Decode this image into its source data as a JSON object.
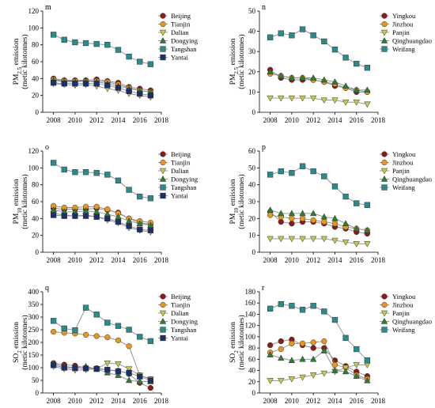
{
  "chart_data": [
    {
      "type": "line",
      "panel_label": "m",
      "ylabel": "PM₂.₅ emission",
      "ylabel_main": "PM",
      "ylabel_sub": "2.5",
      "ylabel_rest": " emission",
      "ylabel_units": "(metic kilotonnes)",
      "xlim": [
        2007,
        2018
      ],
      "xticks": [
        "2008",
        "2010",
        "2012",
        "2014",
        "2016",
        "2018"
      ],
      "ylim": [
        0,
        120
      ],
      "yticks": [
        "0",
        "20",
        "40",
        "60",
        "80",
        "100",
        "120"
      ],
      "legend_position": "top-right",
      "x": [
        2008,
        2009,
        2010,
        2011,
        2012,
        2013,
        2014,
        2015,
        2016,
        2017
      ],
      "series": [
        {
          "name": "Beijing",
          "color": "#8b1a1a",
          "marker": "circle",
          "values": [
            40,
            38,
            38,
            38,
            39,
            37,
            35,
            30,
            28,
            26
          ]
        },
        {
          "name": "Tianjin",
          "color": "#e8961e",
          "marker": "circle",
          "values": [
            39,
            37,
            37,
            37,
            37,
            36,
            33,
            29,
            26,
            24
          ]
        },
        {
          "name": "Dalian",
          "color": "#c8c84a",
          "marker": "triangle-down",
          "values": [
            34,
            33,
            32,
            33,
            31,
            28,
            26,
            22,
            20,
            18
          ]
        },
        {
          "name": "Dongying",
          "color": "#2e7d32",
          "marker": "triangle-up",
          "values": [
            38,
            36,
            36,
            37,
            36,
            34,
            31,
            28,
            26,
            24
          ]
        },
        {
          "name": "Tangshan",
          "color": "#2a8a8c",
          "marker": "square",
          "values": [
            92,
            86,
            83,
            82,
            81,
            80,
            74,
            66,
            60,
            57
          ]
        },
        {
          "name": "Yantai",
          "color": "#1b2f6b",
          "marker": "square",
          "values": [
            35,
            34,
            34,
            34,
            34,
            32,
            29,
            25,
            22,
            20
          ]
        }
      ]
    },
    {
      "type": "line",
      "panel_label": "n",
      "ylabel": "PM₂.₅ emission",
      "ylabel_main": "PM",
      "ylabel_sub": "2.5",
      "ylabel_rest": " emission",
      "ylabel_units": "(metic kilotonnes)",
      "xlim": [
        2007,
        2018
      ],
      "xticks": [
        "2008",
        "2010",
        "2012",
        "2014",
        "2016",
        "2018"
      ],
      "ylim": [
        0,
        50
      ],
      "yticks": [
        "0",
        "10",
        "20",
        "30",
        "40",
        "50"
      ],
      "legend_position": "top-right",
      "x": [
        2008,
        2009,
        2010,
        2011,
        2012,
        2013,
        2014,
        2015,
        2016,
        2017
      ],
      "series": [
        {
          "name": "Yingkou",
          "color": "#8b1a1a",
          "marker": "circle",
          "values": [
            21,
            17,
            16,
            16,
            16,
            15,
            13,
            12,
            10,
            10
          ]
        },
        {
          "name": "Jinzhou",
          "color": "#e8961e",
          "marker": "circle",
          "values": [
            19,
            18,
            17,
            17,
            16,
            15,
            14,
            12,
            11,
            10
          ]
        },
        {
          "name": "Panjin",
          "color": "#c8c84a",
          "marker": "triangle-down",
          "values": [
            7,
            7,
            7,
            7,
            7,
            6,
            6,
            5,
            5,
            4
          ]
        },
        {
          "name": "Qinghuangdao",
          "color": "#2e7d32",
          "marker": "triangle-up",
          "values": [
            20,
            18,
            17,
            17,
            17,
            16,
            15,
            13,
            11,
            11
          ]
        },
        {
          "name": "Weifang",
          "color": "#2a8a8c",
          "marker": "square",
          "values": [
            37,
            39,
            38,
            41,
            38,
            35,
            31,
            27,
            24,
            22
          ]
        }
      ]
    },
    {
      "type": "line",
      "panel_label": "o",
      "ylabel": "PM₁₀ emission",
      "ylabel_main": "PM",
      "ylabel_sub": "10",
      "ylabel_rest": " emission",
      "ylabel_units": "(metic kilotonnes)",
      "xlim": [
        2007,
        2018
      ],
      "xticks": [
        "2008",
        "2010",
        "2012",
        "2014",
        "2016",
        "2018"
      ],
      "ylim": [
        0,
        120
      ],
      "yticks": [
        "0",
        "20",
        "40",
        "60",
        "80",
        "100",
        "120"
      ],
      "legend_position": "top-right",
      "x": [
        2008,
        2009,
        2010,
        2011,
        2012,
        2013,
        2014,
        2015,
        2016,
        2017
      ],
      "series": [
        {
          "name": "Beijing",
          "color": "#8b1a1a",
          "marker": "circle",
          "values": [
            52,
            51,
            51,
            51,
            52,
            50,
            47,
            40,
            35,
            33
          ]
        },
        {
          "name": "Tianjin",
          "color": "#e8961e",
          "marker": "circle",
          "values": [
            55,
            53,
            53,
            54,
            54,
            51,
            46,
            40,
            37,
            35
          ]
        },
        {
          "name": "Dalian",
          "color": "#c8c84a",
          "marker": "triangle-down",
          "values": [
            46,
            44,
            43,
            44,
            42,
            38,
            35,
            29,
            26,
            24
          ]
        },
        {
          "name": "Dongying",
          "color": "#2e7d32",
          "marker": "triangle-up",
          "values": [
            50,
            48,
            48,
            49,
            48,
            45,
            42,
            37,
            34,
            32
          ]
        },
        {
          "name": "Tangshan",
          "color": "#2a8a8c",
          "marker": "square",
          "values": [
            106,
            98,
            95,
            95,
            94,
            92,
            85,
            74,
            66,
            64
          ]
        },
        {
          "name": "Yantai",
          "color": "#1b2f6b",
          "marker": "square",
          "values": [
            44,
            43,
            43,
            43,
            42,
            40,
            36,
            31,
            27,
            26
          ]
        }
      ]
    },
    {
      "type": "line",
      "panel_label": "p",
      "ylabel": "PM₁₀ emission",
      "ylabel_main": "PM",
      "ylabel_sub": "10",
      "ylabel_rest": " emission",
      "ylabel_units": "(metic kilotonnes)",
      "xlim": [
        2007,
        2018
      ],
      "xticks": [
        "2008",
        "2010",
        "2012",
        "2014",
        "2016",
        "2018"
      ],
      "ylim": [
        0,
        60
      ],
      "yticks": [
        "0",
        "10",
        "20",
        "30",
        "40",
        "50",
        "60"
      ],
      "legend_position": "top-right",
      "x": [
        2008,
        2009,
        2010,
        2011,
        2012,
        2013,
        2014,
        2015,
        2016,
        2017
      ],
      "series": [
        {
          "name": "Yingkou",
          "color": "#8b1a1a",
          "marker": "circle",
          "values": [
            24,
            18,
            17,
            18,
            18,
            17,
            15,
            14,
            12,
            11
          ]
        },
        {
          "name": "Jinzhou",
          "color": "#e8961e",
          "marker": "circle",
          "values": [
            22,
            21,
            20,
            20,
            19,
            18,
            17,
            15,
            14,
            13
          ]
        },
        {
          "name": "Panjin",
          "color": "#c8c84a",
          "marker": "triangle-down",
          "values": [
            8,
            8,
            8,
            8,
            8,
            8,
            7,
            6,
            5,
            5
          ]
        },
        {
          "name": "Qinghuangdao",
          "color": "#2e7d32",
          "marker": "triangle-up",
          "values": [
            25,
            23,
            23,
            23,
            23,
            21,
            20,
            17,
            14,
            13
          ]
        },
        {
          "name": "Weifang",
          "color": "#2a8a8c",
          "marker": "square",
          "values": [
            46,
            48,
            47,
            51,
            48,
            45,
            39,
            33,
            29,
            28
          ]
        }
      ]
    },
    {
      "type": "line",
      "panel_label": "q",
      "ylabel": "SO₂ emission",
      "ylabel_main": "SO",
      "ylabel_sub": "2",
      "ylabel_rest": " emission",
      "ylabel_units": "(metic kilotonnes)",
      "xlim": [
        2007,
        2018
      ],
      "xticks": [
        "2008",
        "2010",
        "2012",
        "2014",
        "2016",
        "2018"
      ],
      "ylim": [
        0,
        400
      ],
      "yticks": [
        "0",
        "50",
        "100",
        "150",
        "200",
        "250",
        "300",
        "350",
        "400"
      ],
      "legend_position": "top-right",
      "x": [
        2008,
        2009,
        2010,
        2011,
        2012,
        2013,
        2014,
        2015,
        2016,
        2017
      ],
      "series": [
        {
          "name": "Beijing",
          "color": "#8b1a1a",
          "marker": "circle",
          "values": [
            118,
            112,
            108,
            100,
            98,
            92,
            88,
            75,
            40,
            20
          ]
        },
        {
          "name": "Tianjin",
          "color": "#e8961e",
          "marker": "circle",
          "values": [
            242,
            238,
            235,
            230,
            225,
            220,
            208,
            185,
            70,
            55
          ]
        },
        {
          "name": "Dalian",
          "color": "#c8c84a",
          "marker": "triangle-down",
          "values": [
            105,
            95,
            90,
            92,
            95,
            118,
            115,
            95,
            70,
            55
          ]
        },
        {
          "name": "Dongying",
          "color": "#2e7d32",
          "marker": "triangle-up",
          "values": [
            115,
            105,
            100,
            105,
            95,
            80,
            70,
            50,
            45,
            45
          ]
        },
        {
          "name": "Tangshan",
          "color": "#2a8a8c",
          "marker": "square",
          "values": [
            285,
            255,
            248,
            337,
            310,
            278,
            265,
            250,
            222,
            205
          ]
        },
        {
          "name": "Yantai",
          "color": "#1b2f6b",
          "marker": "square",
          "values": [
            110,
            100,
            98,
            97,
            95,
            92,
            85,
            80,
            65,
            50
          ]
        }
      ]
    },
    {
      "type": "line",
      "panel_label": "r",
      "ylabel": "SO₂ emission",
      "ylabel_main": "SO",
      "ylabel_sub": "2",
      "ylabel_rest": " emission",
      "ylabel_units": "(metic kilotonnes)",
      "xlim": [
        2007,
        2018
      ],
      "xticks": [
        "2008",
        "2010",
        "2012",
        "2014",
        "2016",
        "2018"
      ],
      "ylim": [
        0,
        180
      ],
      "yticks": [
        "0",
        "20",
        "40",
        "60",
        "80",
        "100",
        "120",
        "140",
        "160",
        "180"
      ],
      "legend_position": "top-right",
      "x": [
        2008,
        2009,
        2010,
        2011,
        2012,
        2013,
        2014,
        2015,
        2016,
        2017
      ],
      "series": [
        {
          "name": "Yingkou",
          "color": "#8b1a1a",
          "marker": "circle",
          "values": [
            85,
            92,
            95,
            85,
            80,
            80,
            58,
            48,
            38,
            30
          ]
        },
        {
          "name": "Jinzhou",
          "color": "#e8961e",
          "marker": "circle",
          "values": [
            72,
            78,
            88,
            88,
            90,
            92,
            50,
            45,
            32,
            25
          ]
        },
        {
          "name": "Panjin",
          "color": "#c8c84a",
          "marker": "triangle-down",
          "values": [
            22,
            22,
            25,
            28,
            32,
            35,
            38,
            45,
            50,
            50
          ]
        },
        {
          "name": "Qinghuangdao",
          "color": "#2e7d32",
          "marker": "triangle-up",
          "values": [
            68,
            62,
            58,
            60,
            60,
            75,
            40,
            38,
            30,
            22
          ]
        },
        {
          "name": "Weifang",
          "color": "#2a8a8c",
          "marker": "square",
          "values": [
            150,
            158,
            155,
            148,
            155,
            145,
            130,
            98,
            78,
            58
          ]
        }
      ]
    }
  ]
}
